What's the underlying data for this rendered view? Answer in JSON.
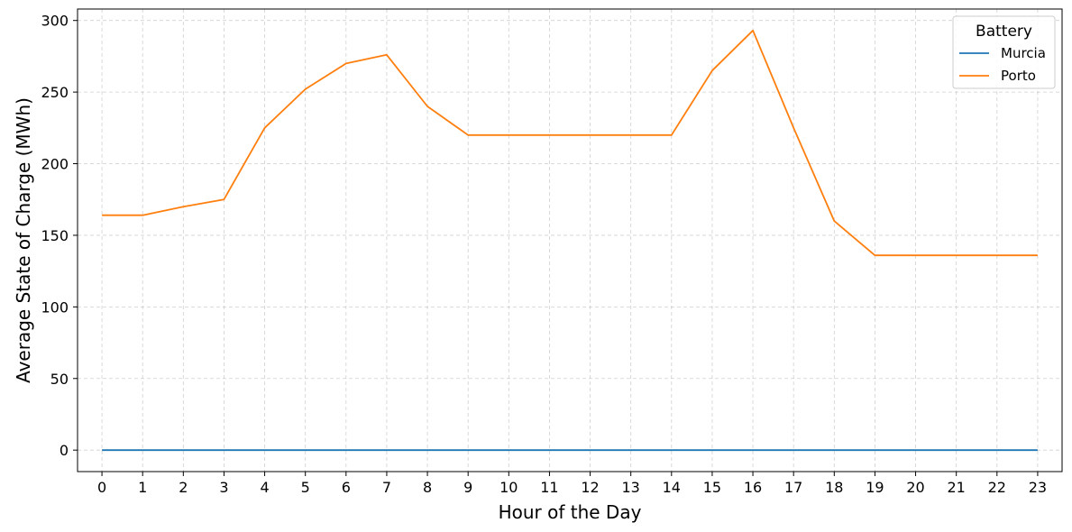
{
  "chart_data": {
    "type": "line",
    "title": "",
    "xlabel": "Hour of the Day",
    "ylabel": "Average State of Charge (MWh)",
    "x": [
      0,
      1,
      2,
      3,
      4,
      5,
      6,
      7,
      8,
      9,
      10,
      11,
      12,
      13,
      14,
      15,
      16,
      17,
      18,
      19,
      20,
      21,
      22,
      23
    ],
    "xticks": [
      "0",
      "1",
      "2",
      "3",
      "4",
      "5",
      "6",
      "7",
      "8",
      "9",
      "10",
      "11",
      "12",
      "13",
      "14",
      "15",
      "16",
      "17",
      "18",
      "19",
      "20",
      "21",
      "22",
      "23"
    ],
    "yticks": [
      "0",
      "50",
      "100",
      "150",
      "200",
      "250",
      "300"
    ],
    "xlim": [
      -0.6,
      23.6
    ],
    "ylim": [
      -15,
      308
    ],
    "grid": true,
    "legend": {
      "title": "Battery",
      "position": "top-right"
    },
    "series": [
      {
        "name": "Murcia",
        "color": "#1f77b4",
        "values": [
          0,
          0,
          0,
          0,
          0,
          0,
          0,
          0,
          0,
          0,
          0,
          0,
          0,
          0,
          0,
          0,
          0,
          0,
          0,
          0,
          0,
          0,
          0,
          0
        ]
      },
      {
        "name": "Porto",
        "color": "#ff7f0e",
        "values": [
          164,
          164,
          170,
          175,
          225,
          252,
          270,
          276,
          240,
          220,
          220,
          220,
          220,
          220,
          220,
          265,
          293,
          225,
          160,
          136,
          136,
          136,
          136,
          136
        ]
      }
    ]
  }
}
